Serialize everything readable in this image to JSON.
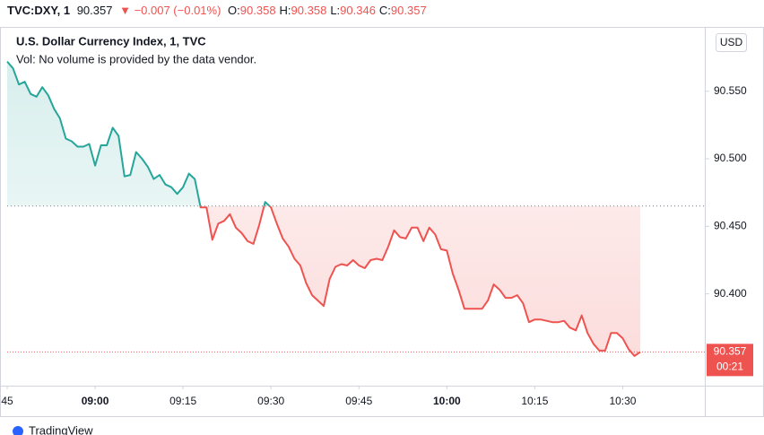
{
  "header": {
    "symbol": "TVC:DXY, 1",
    "last": "90.357",
    "change": "▼ −0.007 (−0.01%)",
    "ohlc": [
      {
        "label": "O:",
        "value": "90.358"
      },
      {
        "label": "H:",
        "value": "90.358"
      },
      {
        "label": "L:",
        "value": "90.346"
      },
      {
        "label": "C:",
        "value": "90.357"
      }
    ]
  },
  "chart_data": {
    "type": "baseline-line",
    "title": "U.S. Dollar Currency Index, 1, TVC",
    "subtitle": "Vol: No volume is provided by the data vendor.",
    "currency": "USD",
    "x": [
      "08:45",
      "08:46",
      "08:47",
      "08:48",
      "08:49",
      "08:50",
      "08:51",
      "08:52",
      "08:53",
      "08:54",
      "08:55",
      "08:56",
      "08:57",
      "08:58",
      "08:59",
      "09:00",
      "09:01",
      "09:02",
      "09:03",
      "09:04",
      "09:05",
      "09:06",
      "09:07",
      "09:08",
      "09:09",
      "09:10",
      "09:11",
      "09:12",
      "09:13",
      "09:14",
      "09:15",
      "09:16",
      "09:17",
      "09:18",
      "09:19",
      "09:20",
      "09:21",
      "09:22",
      "09:23",
      "09:24",
      "09:25",
      "09:26",
      "09:27",
      "09:28",
      "09:29",
      "09:30",
      "09:31",
      "09:32",
      "09:33",
      "09:34",
      "09:35",
      "09:36",
      "09:37",
      "09:38",
      "09:39",
      "09:40",
      "09:41",
      "09:42",
      "09:43",
      "09:44",
      "09:45",
      "09:46",
      "09:47",
      "09:48",
      "09:49",
      "09:50",
      "09:51",
      "09:52",
      "09:53",
      "09:54",
      "09:55",
      "09:56",
      "09:57",
      "09:58",
      "09:59",
      "10:00",
      "10:01",
      "10:02",
      "10:03",
      "10:04",
      "10:05",
      "10:06",
      "10:07",
      "10:08",
      "10:09",
      "10:10",
      "10:11",
      "10:12",
      "10:13",
      "10:14",
      "10:15",
      "10:16",
      "10:17",
      "10:18",
      "10:19",
      "10:20",
      "10:21",
      "10:22",
      "10:23",
      "10:24",
      "10:25",
      "10:26",
      "10:27",
      "10:28",
      "10:29",
      "10:30",
      "10:31",
      "10:32",
      "10:33"
    ],
    "series": [
      {
        "name": "DXY",
        "values": [
          90.572,
          90.567,
          90.555,
          90.557,
          90.548,
          90.546,
          90.553,
          90.547,
          90.537,
          90.53,
          90.515,
          90.513,
          90.509,
          90.509,
          90.511,
          90.495,
          90.51,
          90.51,
          90.523,
          90.517,
          90.487,
          90.488,
          90.505,
          90.5,
          90.494,
          90.485,
          90.488,
          90.481,
          90.479,
          90.474,
          90.479,
          90.489,
          90.485,
          90.464,
          90.464,
          90.44,
          90.452,
          90.454,
          90.459,
          90.449,
          90.445,
          90.439,
          90.437,
          90.451,
          90.468,
          90.464,
          90.452,
          90.441,
          90.435,
          90.426,
          90.421,
          90.408,
          90.399,
          90.395,
          90.391,
          90.411,
          90.42,
          90.422,
          90.421,
          90.425,
          90.421,
          90.419,
          90.425,
          90.426,
          90.425,
          90.435,
          90.447,
          90.442,
          90.441,
          90.449,
          90.449,
          90.439,
          90.449,
          90.444,
          90.433,
          90.432,
          90.415,
          90.403,
          90.389,
          90.389,
          90.389,
          90.389,
          90.395,
          90.407,
          90.403,
          90.397,
          90.397,
          90.399,
          90.393,
          90.379,
          90.381,
          90.381,
          90.38,
          90.379,
          90.379,
          90.38,
          90.375,
          90.373,
          90.384,
          90.371,
          90.363,
          90.358,
          90.358,
          90.371,
          90.371,
          90.367,
          90.359,
          90.354,
          90.357
        ]
      }
    ],
    "baseline": 90.465,
    "color_above": "#26a69a",
    "color_below": "#ef5350",
    "countdown": "00:21",
    "xlim": [
      "08:45",
      "10:44"
    ],
    "xticks": [
      {
        "value": "08:45",
        "label": "45"
      },
      "09:00",
      "09:15",
      "09:30",
      "09:45",
      "10:00",
      "10:15",
      "10:30"
    ],
    "ylim": [
      90.332,
      90.597
    ],
    "yticks": [
      {
        "value": 90.4,
        "label": "90.400"
      },
      {
        "value": 90.45,
        "label": "90.450"
      },
      {
        "value": 90.5,
        "label": "90.500"
      },
      {
        "value": 90.55,
        "label": "90.550"
      }
    ]
  },
  "footer": "TradingView"
}
